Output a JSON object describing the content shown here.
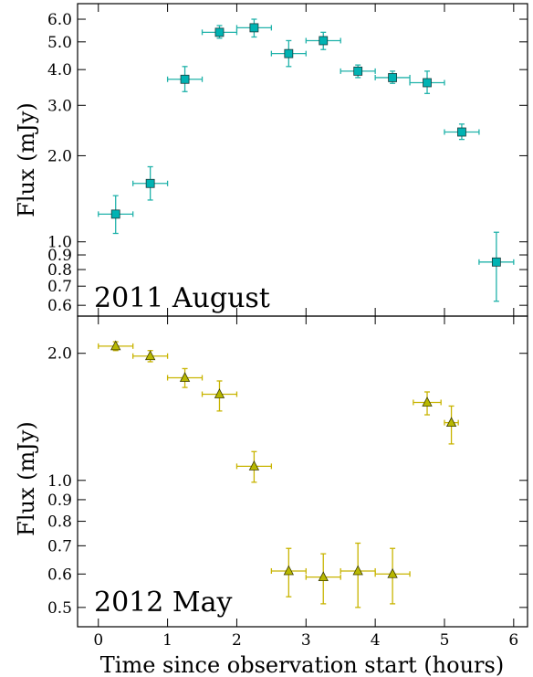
{
  "chart_data": [
    {
      "type": "scatter",
      "annotation": "2011 August",
      "ylabel": "Flux (mJy)",
      "xlabel": "",
      "xlim": [
        -0.3,
        6.2
      ],
      "ylim": [
        0.55,
        6.8
      ],
      "yscale": "log",
      "marker": "square",
      "color": "#00b3b3",
      "errbar_color": "#20b2aa",
      "yticks": [
        0.6,
        0.7,
        0.8,
        0.9,
        1.0,
        2.0,
        3.0,
        4.0,
        5.0,
        6.0
      ],
      "ytick_labels": [
        "0.6",
        "0.7",
        "0.8",
        "0.9",
        "1.0",
        "2.0",
        "3.0",
        "4.0",
        "5.0",
        "6.0"
      ],
      "xticks": [
        0,
        1,
        2,
        3,
        4,
        5,
        6
      ],
      "points": [
        {
          "x": 0.25,
          "y": 1.25,
          "ylo": 1.07,
          "yhi": 1.45,
          "xerr": 0.25
        },
        {
          "x": 0.75,
          "y": 1.6,
          "ylo": 1.4,
          "yhi": 1.83,
          "xerr": 0.25
        },
        {
          "x": 1.25,
          "y": 3.7,
          "ylo": 3.35,
          "yhi": 4.1,
          "xerr": 0.25
        },
        {
          "x": 1.75,
          "y": 5.4,
          "ylo": 5.15,
          "yhi": 5.7,
          "xerr": 0.25
        },
        {
          "x": 2.25,
          "y": 5.6,
          "ylo": 5.2,
          "yhi": 6.0,
          "xerr": 0.25
        },
        {
          "x": 2.75,
          "y": 4.55,
          "ylo": 4.1,
          "yhi": 5.05,
          "xerr": 0.25
        },
        {
          "x": 3.25,
          "y": 5.05,
          "ylo": 4.7,
          "yhi": 5.4,
          "xerr": 0.25
        },
        {
          "x": 3.75,
          "y": 3.95,
          "ylo": 3.75,
          "yhi": 4.15,
          "xerr": 0.25
        },
        {
          "x": 4.25,
          "y": 3.75,
          "ylo": 3.58,
          "yhi": 3.95,
          "xerr": 0.25
        },
        {
          "x": 4.75,
          "y": 3.6,
          "ylo": 3.3,
          "yhi": 3.95,
          "xerr": 0.25
        },
        {
          "x": 5.25,
          "y": 2.42,
          "ylo": 2.28,
          "yhi": 2.58,
          "xerr": 0.25
        },
        {
          "x": 5.75,
          "y": 0.85,
          "ylo": 0.62,
          "yhi": 1.08,
          "xerr": 0.25
        }
      ]
    },
    {
      "type": "scatter",
      "annotation": "2012 May",
      "ylabel": "Flux (mJy)",
      "xlabel": "Time since observation start (hours)",
      "xlim": [
        -0.3,
        6.2
      ],
      "ylim": [
        0.45,
        2.45
      ],
      "yscale": "log",
      "marker": "triangle",
      "color": "#b8b800",
      "errbar_color": "#c8b400",
      "yticks": [
        0.5,
        0.6,
        0.7,
        0.8,
        0.9,
        1.0,
        2.0
      ],
      "ytick_labels": [
        "0.5",
        "0.6",
        "0.7",
        "0.8",
        "0.9",
        "1.0",
        "2.0"
      ],
      "xticks": [
        0,
        1,
        2,
        3,
        4,
        5,
        6
      ],
      "xtick_labels": [
        "0",
        "1",
        "2",
        "3",
        "4",
        "5",
        "6"
      ],
      "points": [
        {
          "x": 0.25,
          "y": 2.08,
          "ylo": 2.03,
          "yhi": 2.13,
          "xerr": 0.25
        },
        {
          "x": 0.75,
          "y": 1.97,
          "ylo": 1.91,
          "yhi": 2.03,
          "xerr": 0.25
        },
        {
          "x": 1.25,
          "y": 1.75,
          "ylo": 1.66,
          "yhi": 1.84,
          "xerr": 0.25
        },
        {
          "x": 1.75,
          "y": 1.6,
          "ylo": 1.46,
          "yhi": 1.72,
          "xerr": 0.25
        },
        {
          "x": 2.25,
          "y": 1.08,
          "ylo": 0.99,
          "yhi": 1.17,
          "xerr": 0.25
        },
        {
          "x": 2.75,
          "y": 0.61,
          "ylo": 0.53,
          "yhi": 0.69,
          "xerr": 0.25
        },
        {
          "x": 3.25,
          "y": 0.59,
          "ylo": 0.51,
          "yhi": 0.67,
          "xerr": 0.25
        },
        {
          "x": 3.75,
          "y": 0.61,
          "ylo": 0.5,
          "yhi": 0.71,
          "xerr": 0.25
        },
        {
          "x": 4.25,
          "y": 0.6,
          "ylo": 0.51,
          "yhi": 0.69,
          "xerr": 0.25
        },
        {
          "x": 4.75,
          "y": 1.53,
          "ylo": 1.43,
          "yhi": 1.62,
          "xerr": 0.2
        },
        {
          "x": 5.1,
          "y": 1.37,
          "ylo": 1.22,
          "yhi": 1.5,
          "xerr": 0.1
        }
      ]
    }
  ]
}
